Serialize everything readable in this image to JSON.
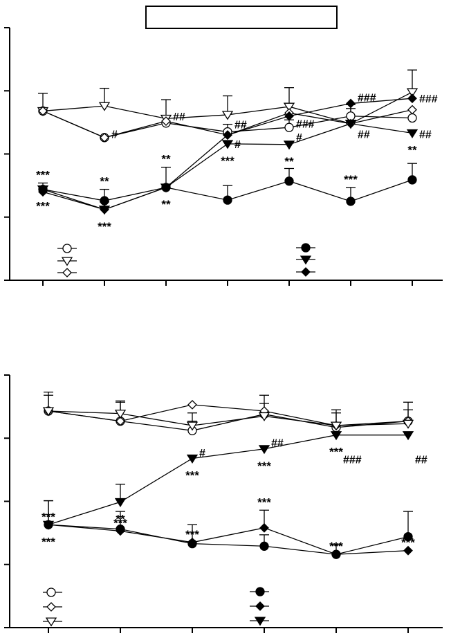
{
  "title_box": "",
  "chart_data": [
    {
      "type": "line",
      "ylim": [
        0,
        4
      ],
      "x": [
        1,
        2,
        3,
        4,
        5,
        6,
        7
      ],
      "series": [
        {
          "marker": "circle-open",
          "values": [
            2.68,
            2.26,
            2.49,
            2.35,
            2.42,
            2.6,
            2.57
          ],
          "errors": [
            0,
            0,
            0.12,
            0.12,
            0.12,
            0.12,
            0
          ],
          "labels": [
            "",
            "",
            "",
            "",
            "",
            "",
            ""
          ],
          "label_pos": "above"
        },
        {
          "marker": "tri-open",
          "values": [
            2.68,
            2.76,
            2.56,
            2.62,
            2.75,
            2.48,
            2.98
          ],
          "errors": [
            0.28,
            0.28,
            0.3,
            0.3,
            0.3,
            0.3,
            0.35
          ],
          "labels": [
            "",
            "",
            "",
            "",
            "",
            "",
            ""
          ],
          "label_pos": "above"
        },
        {
          "marker": "diamond-open",
          "values": [
            2.68,
            2.26,
            2.52,
            2.3,
            2.65,
            2.48,
            2.7
          ],
          "errors": [
            0,
            0,
            0,
            0,
            0,
            0,
            0
          ],
          "labels": [
            "",
            "",
            "",
            "",
            "",
            "",
            ""
          ],
          "label_pos": "above"
        },
        {
          "marker": "circle-filled",
          "values": [
            1.44,
            1.26,
            1.47,
            1.27,
            1.57,
            1.25,
            1.59
          ],
          "errors": [
            0.1,
            0.18,
            0.32,
            0.23,
            0.2,
            0.22,
            0.26
          ],
          "labels": [
            "***",
            "**",
            "**",
            "",
            "",
            "***",
            ""
          ],
          "label_pos": "above"
        },
        {
          "marker": "tri-filled",
          "values": [
            1.44,
            1.12,
            1.47,
            2.16,
            2.15,
            2.48,
            2.33
          ],
          "errors": [
            0,
            0.12,
            0,
            0,
            0,
            0,
            0
          ],
          "labels": [
            "***",
            "***",
            "**",
            "***",
            "**",
            "",
            "**"
          ],
          "label_pos": "below"
        },
        {
          "marker": "diamond-filled",
          "values": [
            1.4,
            1.12,
            1.47,
            2.3,
            2.6,
            2.8,
            2.88
          ],
          "errors": [
            0,
            0,
            0,
            0,
            0,
            0,
            0
          ],
          "labels": [
            "",
            "",
            "",
            "",
            "",
            "",
            ""
          ],
          "label_pos": "above"
        }
      ],
      "annotations": [
        {
          "x": 2,
          "y": 2.32,
          "text": "#"
        },
        {
          "x": 3,
          "y": 2.6,
          "text": "##"
        },
        {
          "x": 4,
          "y": 2.47,
          "text": "##"
        },
        {
          "x": 4,
          "y": 2.16,
          "text": "#"
        },
        {
          "x": 5,
          "y": 2.48,
          "text": "###"
        },
        {
          "x": 5,
          "y": 2.27,
          "text": "#"
        },
        {
          "x": 6,
          "y": 2.9,
          "text": "###"
        },
        {
          "x": 6,
          "y": 2.32,
          "text": "##"
        },
        {
          "x": 7,
          "y": 2.88,
          "text": "###"
        },
        {
          "x": 7,
          "y": 2.32,
          "text": "##"
        }
      ]
    },
    {
      "type": "line",
      "ylim": [
        0,
        4
      ],
      "x": [
        1,
        2,
        3,
        4,
        5,
        6
      ],
      "series": [
        {
          "marker": "circle-open",
          "values": [
            3.43,
            3.27,
            3.12,
            3.38,
            3.17,
            3.27
          ],
          "errors": [
            0.3,
            0.3,
            0.15,
            0.3,
            0.28,
            0.3
          ],
          "labels": [
            "",
            "",
            "",
            "",
            "",
            ""
          ],
          "label_pos": "above"
        },
        {
          "marker": "diamond-open",
          "values": [
            3.43,
            3.27,
            3.53,
            3.43,
            3.2,
            3.27
          ],
          "errors": [
            0,
            0,
            0,
            0,
            0,
            0
          ],
          "labels": [
            "",
            "",
            "",
            "",
            "",
            ""
          ],
          "label_pos": "above"
        },
        {
          "marker": "tri-open",
          "values": [
            3.43,
            3.39,
            3.2,
            3.35,
            3.2,
            3.23
          ],
          "errors": [
            0.25,
            0.2,
            0.2,
            0.2,
            0.2,
            0.22
          ],
          "labels": [
            "",
            "",
            "",
            "",
            "",
            ""
          ],
          "label_pos": "above"
        },
        {
          "marker": "circle-filled",
          "values": [
            1.63,
            1.56,
            1.33,
            1.29,
            1.16,
            1.44
          ],
          "errors": [
            0.38,
            0.28,
            0.3,
            0.18,
            0.15,
            0.4
          ],
          "labels": [
            "",
            "",
            "",
            "",
            "",
            ""
          ],
          "label_pos": "above"
        },
        {
          "marker": "diamond-filled",
          "values": [
            1.63,
            1.53,
            1.35,
            1.58,
            1.16,
            1.22
          ],
          "errors": [
            0,
            0,
            0,
            0.28,
            0,
            0
          ],
          "labels": [
            "***",
            "***",
            "***",
            "***",
            "***",
            "***"
          ],
          "label_pos": "above"
        },
        {
          "marker": "tri-filled",
          "values": [
            1.63,
            1.99,
            2.68,
            2.83,
            3.05,
            3.05
          ],
          "errors": [
            0.38,
            0.28,
            0,
            0,
            0,
            0
          ],
          "labels": [
            "***",
            "**",
            "***",
            "***",
            "***",
            ""
          ],
          "label_pos": "below"
        }
      ],
      "annotations": [
        {
          "x": 3,
          "y": 2.77,
          "text": "#"
        },
        {
          "x": 4,
          "y": 2.93,
          "text": "##"
        },
        {
          "x": 5,
          "y": 2.67,
          "text": "###"
        },
        {
          "x": 6,
          "y": 2.67,
          "text": "##"
        }
      ]
    }
  ]
}
